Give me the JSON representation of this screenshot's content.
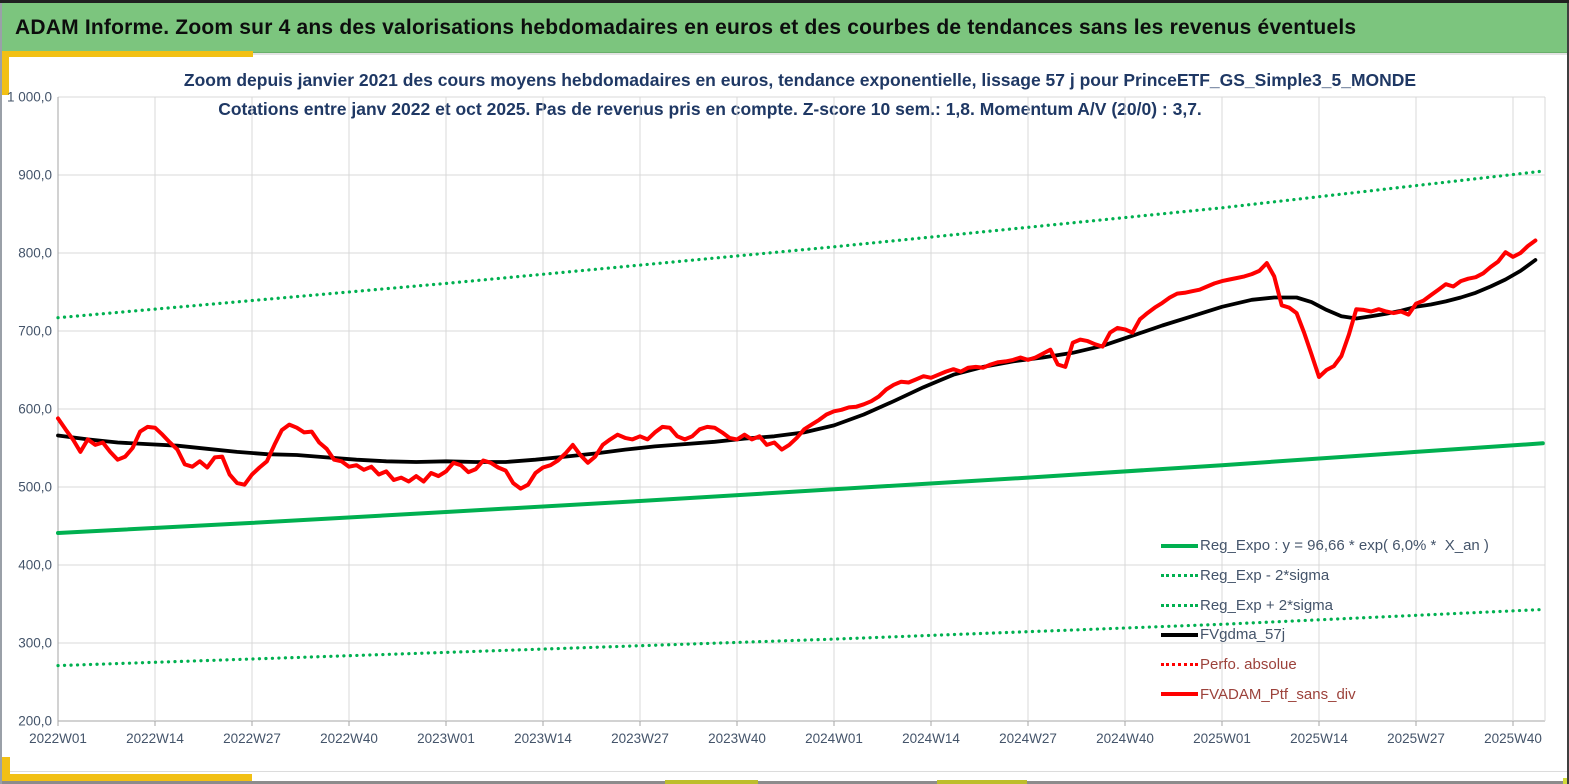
{
  "window": {
    "header": {
      "title": "ADAM Informe. Zoom sur 4 ans des valorisations hebdomadaires en euros et des courbes de tendances sans les revenus éventuels",
      "bg_color": "#7CC57E",
      "accent_color": "#F2C014"
    },
    "bottom_edge": {
      "taskbar_gray": "#8C8C8C",
      "olive_accent": "#BDBE2C",
      "yellow_green_sliver": "#D2DB3A"
    }
  },
  "chart": {
    "title_line1": "Zoom depuis janvier 2021 des cours moyens hebdomadaires en euros, tendance exponentielle, lissage 57 j pour PrinceETF_GS_Simple3_5_MONDE",
    "title_line2": "Cotations entre janv 2022 et oct 2025. Pas de revenus pris en compte. Z-score 10 sem.: 1,8. Momentum A/V (20/0) : 3,7.",
    "title_color": "#1F3864",
    "axis_text_color": "#44546A",
    "legend": [
      {
        "label": "Reg_Expo : y = 96,66 * exp( 6,0% *  X_an )",
        "style": "solid",
        "color": "#00B050",
        "text_color": "#44546A"
      },
      {
        "label": "Reg_Exp - 2*sigma",
        "style": "dotted",
        "color": "#00B050",
        "text_color": "#44546A"
      },
      {
        "label": "Reg_Exp + 2*sigma",
        "style": "dotted",
        "color": "#00B050",
        "text_color": "#44546A"
      },
      {
        "label": "FVgdma_57j",
        "style": "solid",
        "color": "#000000",
        "text_color": "#44546A"
      },
      {
        "label": "Perfo. absolue",
        "style": "dotted",
        "color": "#FF0000",
        "text_color": "#9C423B"
      },
      {
        "label": "FVADAM_Ptf_sans_div",
        "style": "solid",
        "color": "#FF0000",
        "text_color": "#9C423B"
      }
    ]
  },
  "chart_data": {
    "type": "line",
    "x_unit": "weeks since 2022W01",
    "xlim_weeks": [
      0,
      199.3
    ],
    "ylim": [
      200,
      1000
    ],
    "grid": true,
    "grid_color": "#D9D9D9",
    "axis_color": "#A6A6A6",
    "legend_position": "inside-bottom-right",
    "y_tick_values": [
      1000,
      900,
      800,
      700,
      600,
      500,
      400,
      300,
      200
    ],
    "y_tick_labels": [
      "1 000,0",
      "900,0",
      "800,0",
      "700,0",
      "600,0",
      "500,0",
      "400,0",
      "300,0",
      "200,0"
    ],
    "x_tick_weeks": [
      0,
      13,
      26,
      39,
      52,
      65,
      78,
      91,
      104,
      117,
      130,
      143,
      156,
      169,
      182,
      195
    ],
    "x_tick_labels": [
      "2022W01",
      "2022W14",
      "2022W27",
      "2022W40",
      "2023W01",
      "2023W14",
      "2023W27",
      "2023W40",
      "2024W01",
      "2024W14",
      "2024W27",
      "2024W40",
      "2025W01",
      "2025W14",
      "2025W27",
      "2025W40"
    ],
    "series": [
      {
        "name": "Reg_Expo",
        "legend": "Reg_Expo : y = 96,66 * exp( 6,0% *  X_an )",
        "style": "solid",
        "color": "#00B050",
        "width": 4,
        "points": [
          [
            0,
            441
          ],
          [
            26,
            454
          ],
          [
            52,
            468
          ],
          [
            78,
            482
          ],
          [
            104,
            497
          ],
          [
            130,
            512
          ],
          [
            156,
            528
          ],
          [
            182,
            545
          ],
          [
            199,
            556
          ]
        ]
      },
      {
        "name": "Reg_Exp_minus_2sigma",
        "legend": "Reg_Exp - 2*sigma",
        "style": "dotted",
        "color": "#00B050",
        "width": 3.2,
        "points": [
          [
            0,
            271
          ],
          [
            52,
            288
          ],
          [
            104,
            305
          ],
          [
            156,
            324
          ],
          [
            199,
            343
          ]
        ]
      },
      {
        "name": "Reg_Exp_plus_2sigma",
        "legend": "Reg_Exp + 2*sigma",
        "style": "dotted",
        "color": "#00B050",
        "width": 3.2,
        "points": [
          [
            0,
            717
          ],
          [
            52,
            761
          ],
          [
            104,
            808
          ],
          [
            156,
            858
          ],
          [
            199,
            905
          ]
        ]
      },
      {
        "name": "FVgdma_57j",
        "legend": "FVgdma_57j",
        "style": "solid",
        "color": "#000000",
        "width": 3.8,
        "points": [
          [
            0,
            566
          ],
          [
            4,
            561
          ],
          [
            8,
            557
          ],
          [
            12,
            555
          ],
          [
            16,
            553
          ],
          [
            20,
            549
          ],
          [
            24,
            545
          ],
          [
            28,
            542
          ],
          [
            32,
            541
          ],
          [
            36,
            538
          ],
          [
            40,
            535
          ],
          [
            44,
            533
          ],
          [
            48,
            532
          ],
          [
            52,
            533
          ],
          [
            56,
            532
          ],
          [
            60,
            532
          ],
          [
            64,
            535
          ],
          [
            68,
            539
          ],
          [
            72,
            543
          ],
          [
            76,
            548
          ],
          [
            80,
            552
          ],
          [
            84,
            555
          ],
          [
            88,
            558
          ],
          [
            92,
            562
          ],
          [
            96,
            565
          ],
          [
            100,
            570
          ],
          [
            104,
            579
          ],
          [
            108,
            593
          ],
          [
            112,
            610
          ],
          [
            116,
            628
          ],
          [
            120,
            644
          ],
          [
            124,
            654
          ],
          [
            128,
            661
          ],
          [
            132,
            666
          ],
          [
            136,
            672
          ],
          [
            140,
            681
          ],
          [
            144,
            694
          ],
          [
            148,
            707
          ],
          [
            152,
            719
          ],
          [
            156,
            731
          ],
          [
            160,
            740
          ],
          [
            163,
            743
          ],
          [
            166,
            743
          ],
          [
            168,
            737
          ],
          [
            170,
            727
          ],
          [
            172,
            719
          ],
          [
            174,
            716
          ],
          [
            176,
            719
          ],
          [
            178,
            722
          ],
          [
            180,
            726
          ],
          [
            182,
            731
          ],
          [
            184,
            734
          ],
          [
            186,
            738
          ],
          [
            188,
            743
          ],
          [
            190,
            749
          ],
          [
            192,
            757
          ],
          [
            194,
            766
          ],
          [
            196,
            777
          ],
          [
            198,
            791
          ]
        ]
      },
      {
        "name": "Perfo_absolue",
        "legend": "Perfo. absolue",
        "style": "dotted",
        "color": "#FF0000",
        "width": 3,
        "points": []
      },
      {
        "name": "FVADAM_Ptf_sans_div",
        "legend": "FVADAM_Ptf_sans_div",
        "style": "solid",
        "color": "#FF0000",
        "width": 4,
        "start_week": 0,
        "weekly_values": [
          588,
          574,
          561,
          545,
          561,
          554,
          557,
          545,
          535,
          539,
          550,
          571,
          577,
          576,
          567,
          557,
          548,
          529,
          526,
          533,
          525,
          538,
          539,
          516,
          505,
          503,
          516,
          525,
          533,
          554,
          573,
          580,
          576,
          570,
          571,
          557,
          549,
          535,
          533,
          526,
          528,
          522,
          526,
          516,
          520,
          509,
          512,
          507,
          514,
          507,
          518,
          514,
          520,
          531,
          528,
          519,
          523,
          534,
          531,
          525,
          521,
          505,
          498,
          503,
          518,
          525,
          528,
          534,
          543,
          554,
          541,
          531,
          539,
          554,
          561,
          567,
          563,
          561,
          565,
          561,
          570,
          577,
          576,
          565,
          561,
          565,
          574,
          577,
          576,
          570,
          563,
          561,
          567,
          561,
          565,
          554,
          557,
          548,
          554,
          563,
          574,
          580,
          586,
          593,
          597,
          599,
          602,
          603,
          606,
          610,
          616,
          625,
          631,
          635,
          634,
          638,
          642,
          640,
          644,
          648,
          651,
          648,
          653,
          654,
          653,
          657,
          660,
          661,
          663,
          666,
          663,
          666,
          671,
          676,
          657,
          654,
          685,
          689,
          687,
          683,
          680,
          698,
          704,
          702,
          698,
          715,
          723,
          730,
          736,
          743,
          748,
          749,
          751,
          753,
          757,
          761,
          764,
          766,
          768,
          770,
          773,
          777,
          787,
          770,
          733,
          730,
          723,
          698,
          670,
          641,
          650,
          655,
          668,
          695,
          728,
          727,
          725,
          728,
          725,
          723,
          725,
          721,
          735,
          739,
          746,
          753,
          760,
          757,
          764,
          767,
          769,
          774,
          782,
          789,
          801,
          795,
          800,
          809,
          816
        ]
      }
    ]
  }
}
